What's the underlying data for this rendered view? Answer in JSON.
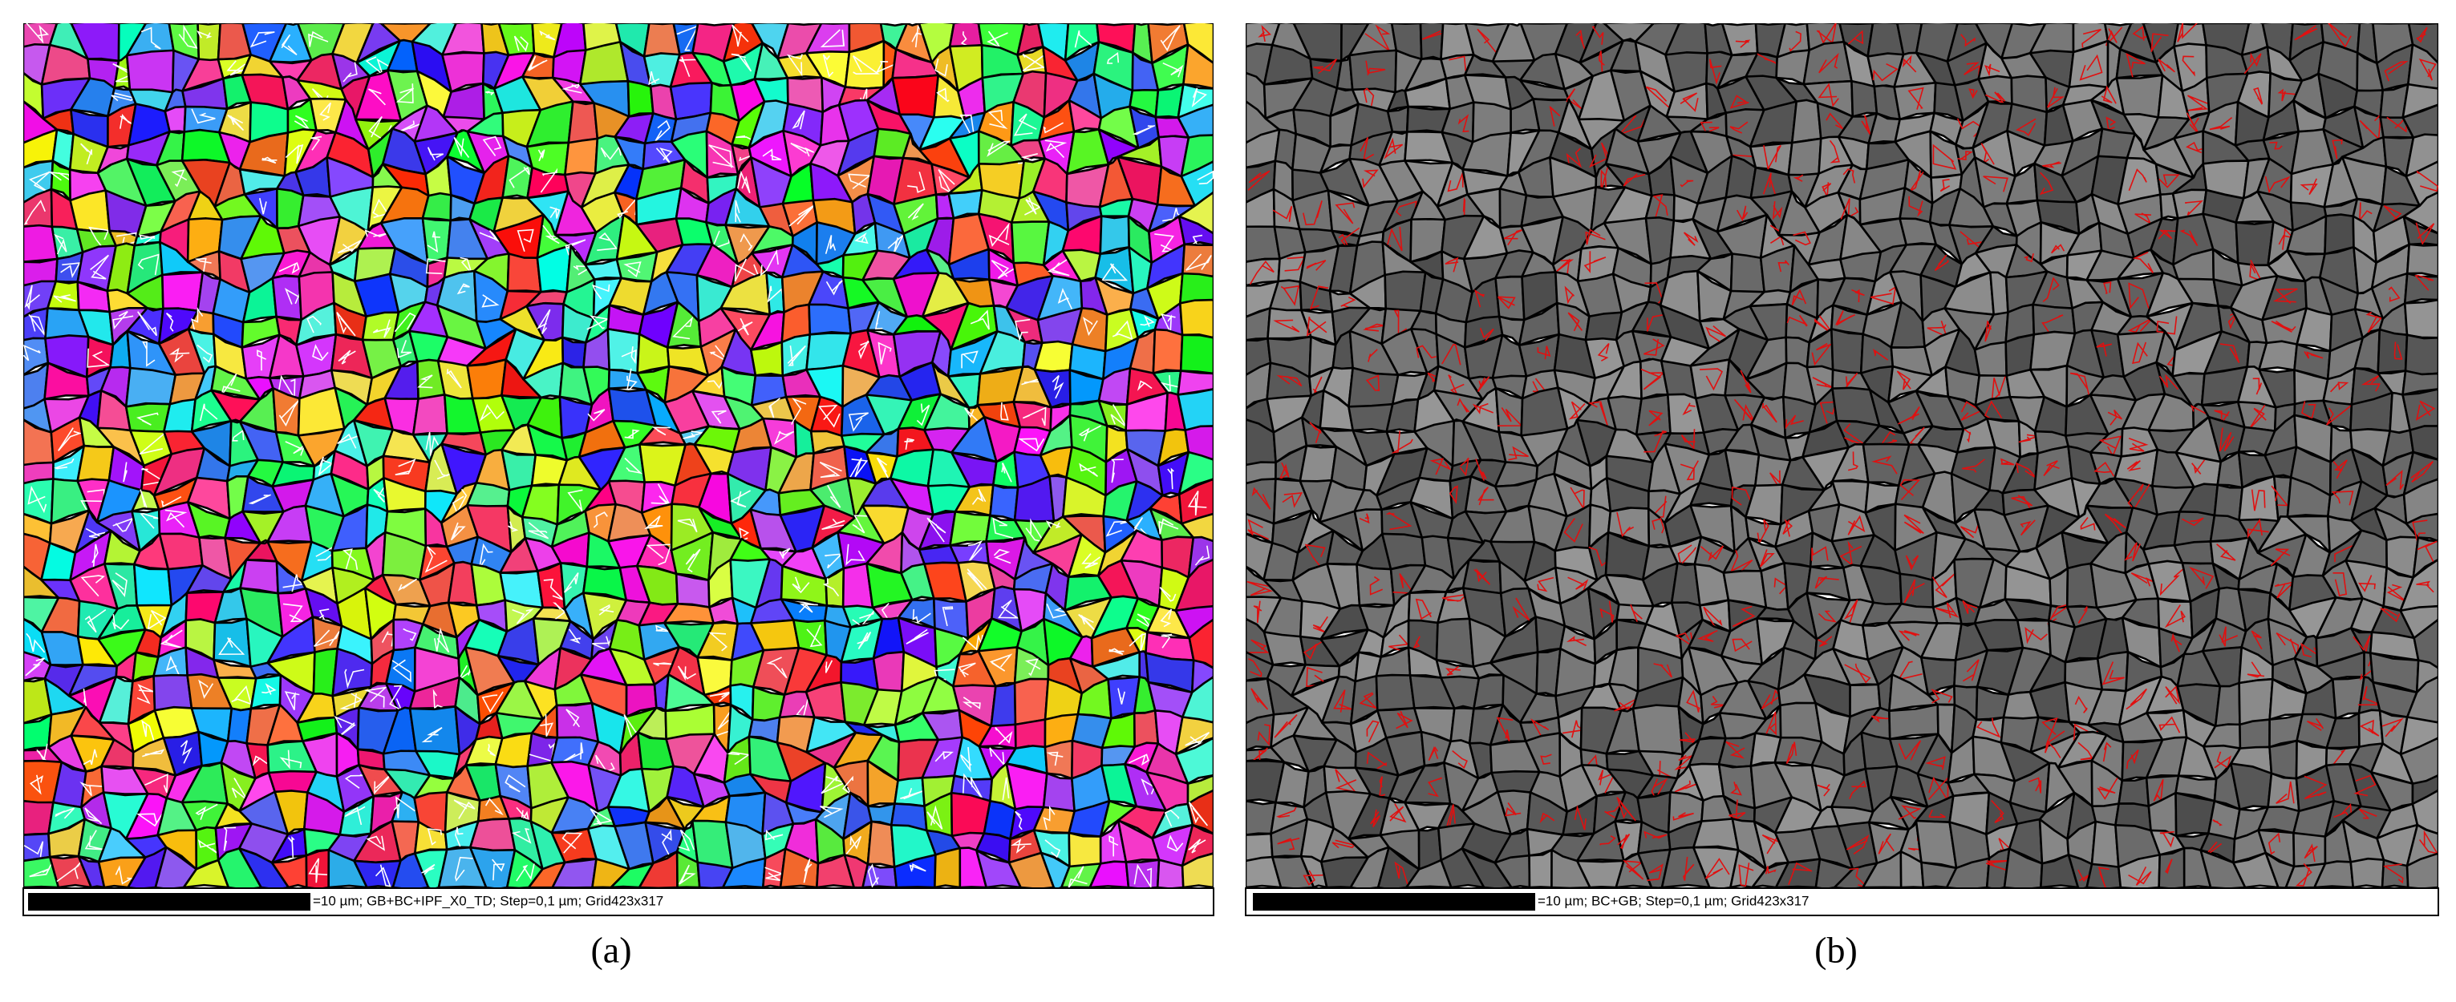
{
  "panels": [
    {
      "label": "(a)",
      "scale_text": "=10 µm; GB+BC+IPF_X0_TD; Step=0,1 µm; Grid423x317"
    },
    {
      "label": "(b)",
      "scale_text": "=10 µm; BC+GB; Step=0,1 µm; Grid423x317"
    }
  ]
}
